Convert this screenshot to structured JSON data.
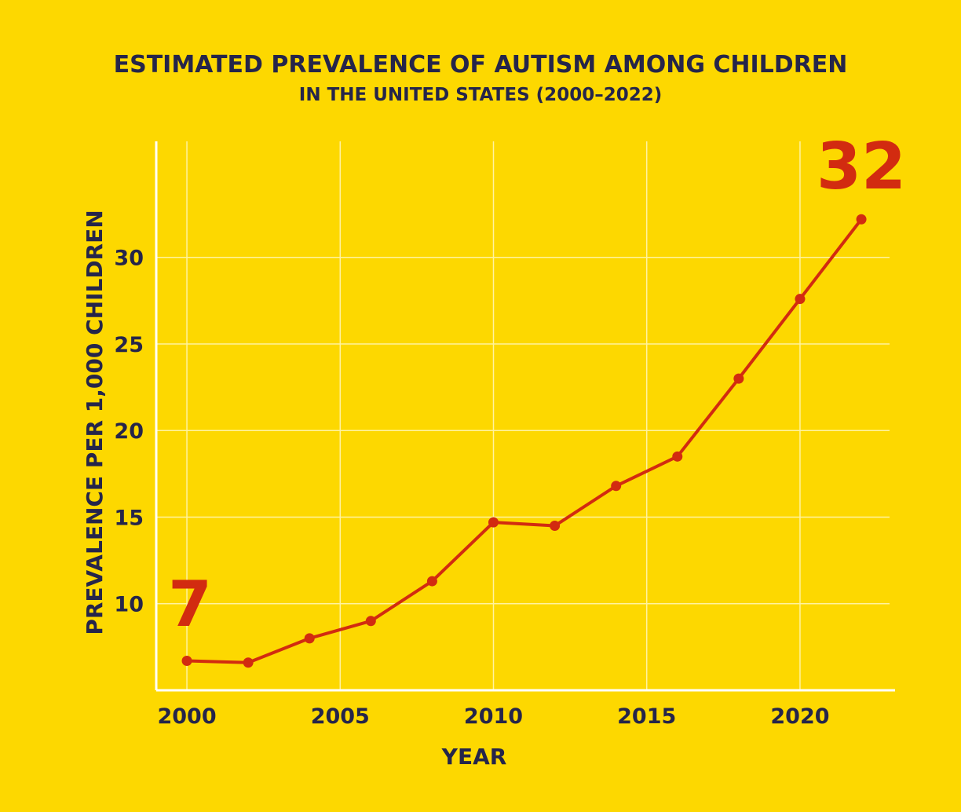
{
  "chart_data": {
    "type": "line",
    "title": "ESTIMATED PREVALENCE OF AUTISM AMONG CHILDREN",
    "subtitle": "IN THE UNITED STATES (2000–2022)",
    "xlabel": "YEAR",
    "ylabel": "PREVALENCE PER 1,000 CHILDREN",
    "x": [
      2000,
      2002,
      2004,
      2006,
      2008,
      2010,
      2012,
      2014,
      2016,
      2018,
      2020,
      2022
    ],
    "values": [
      6.7,
      6.6,
      8.0,
      9.0,
      11.3,
      14.7,
      14.5,
      16.8,
      18.5,
      23.0,
      27.6,
      32.2
    ],
    "xlim": [
      1999,
      2023.1
    ],
    "ylim": [
      5,
      36.7
    ],
    "xticks": [
      "2000",
      "2005",
      "2010",
      "2015",
      "2020"
    ],
    "yticks": [
      "10",
      "15",
      "20",
      "25",
      "30"
    ],
    "grid": true,
    "annotations": [
      {
        "text": "7",
        "x": 2000,
        "y": 6.7
      },
      {
        "text": "32",
        "x": 2022,
        "y": 32.2
      }
    ],
    "colors": {
      "background": "#FDD800",
      "line": "#D22B10",
      "text": "#25254A",
      "grid": "#FFF3A0",
      "axis": "#FFFFFF"
    }
  }
}
